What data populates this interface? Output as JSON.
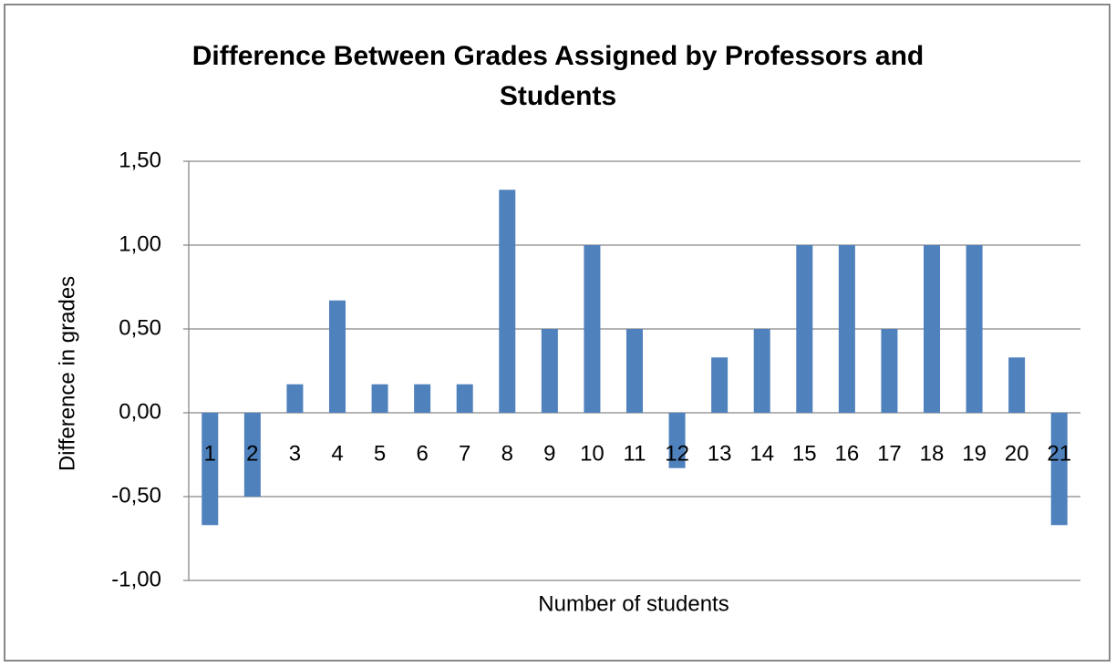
{
  "chart_data": {
    "type": "bar",
    "title": "Difference Between Grades Assigned by Professors and Students",
    "x_label": "Number of students",
    "y_label": "Difference in grades",
    "categories": [
      "1",
      "2",
      "3",
      "4",
      "5",
      "6",
      "7",
      "8",
      "9",
      "10",
      "11",
      "12",
      "13",
      "14",
      "15",
      "16",
      "17",
      "18",
      "19",
      "20",
      "21"
    ],
    "values": [
      -0.67,
      -0.5,
      0.17,
      0.67,
      0.17,
      0.17,
      0.17,
      1.33,
      0.5,
      1.0,
      0.5,
      -0.33,
      0.33,
      0.5,
      1.0,
      1.0,
      0.5,
      1.0,
      1.0,
      0.33,
      -0.67
    ],
    "color": "#4f81bd",
    "ylim": [
      -1,
      1.5
    ],
    "yticks": [
      {
        "value": -1,
        "label": "-1,00"
      },
      {
        "value": -0.5,
        "label": "-0,50"
      },
      {
        "value": 0,
        "label": "0,00"
      },
      {
        "value": 0.5,
        "label": "0,50"
      },
      {
        "value": 1,
        "label": "1,00"
      },
      {
        "value": 1.5,
        "label": "1,50"
      }
    ],
    "grid": true
  }
}
